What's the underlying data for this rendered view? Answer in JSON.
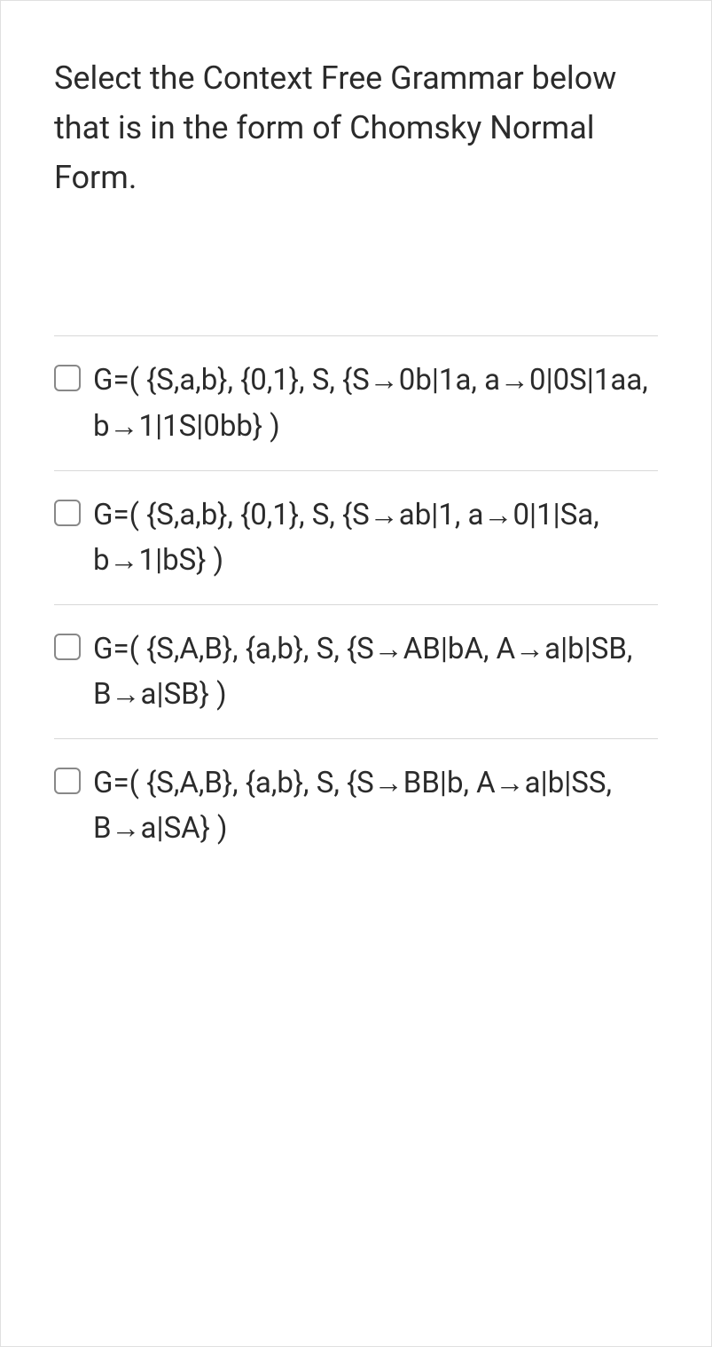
{
  "question": {
    "text": "Select the Context Free Grammar below that is in the form of Chomsky Normal Form."
  },
  "options": [
    {
      "text": "G=( {S,a,b}, {0,1}, S, {S→0b|1a, a→0|0S|1aa, b→1|1S|0bb} )",
      "checked": false
    },
    {
      "text": "G=( {S,a,b}, {0,1}, S, {S→ab|1, a→0|1|Sa, b→1|bS} )",
      "checked": false
    },
    {
      "text": "G=( {S,A,B}, {a,b}, S, {S→AB|bA, A→a|b|SB, B→a|SB} )",
      "checked": false
    },
    {
      "text": "G=( {S,A,B}, {a,b}, S, {S→BB|b, A→a|b|SS, B→a|SA} )",
      "checked": false
    }
  ],
  "colors": {
    "border": "#e0e0e0",
    "divider": "#d8d8d8",
    "text": "#2b2b2b",
    "checkbox_border": "#888888",
    "background": "#ffffff"
  },
  "typography": {
    "question_fontsize": 36,
    "option_fontsize": 33,
    "line_height": 1.55
  }
}
